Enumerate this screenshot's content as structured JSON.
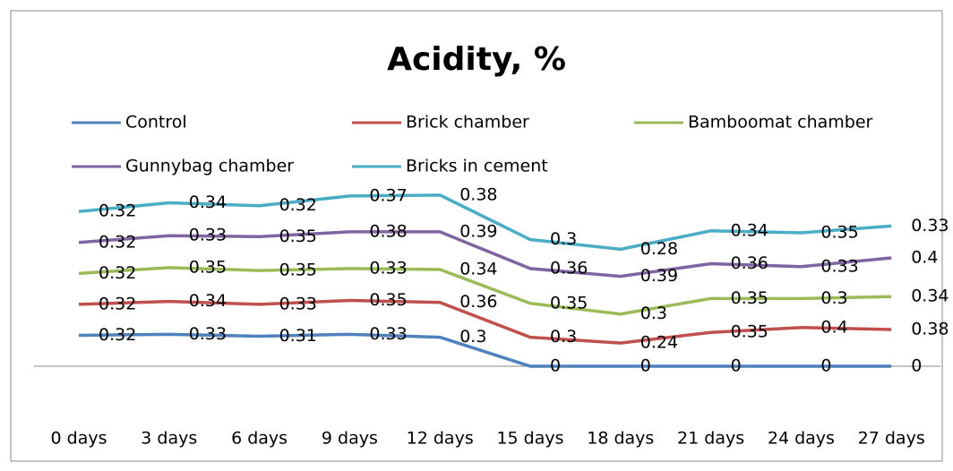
{
  "chart_data": {
    "type": "line",
    "stacked": true,
    "title": "Acidity, %",
    "categories": [
      "0 days",
      "3 days",
      "6 days",
      "9 days",
      "12 days",
      "15 days",
      "18 days",
      "21 days",
      "24 days",
      "27 days"
    ],
    "series": [
      {
        "name": "Control",
        "color": "#4f81bd",
        "values": [
          0.32,
          0.33,
          0.31,
          0.33,
          0.3,
          0,
          0,
          0,
          0,
          0
        ]
      },
      {
        "name": "Brick chamber",
        "color": "#c0504d",
        "values": [
          0.32,
          0.34,
          0.33,
          0.35,
          0.36,
          0.3,
          0.24,
          0.35,
          0.4,
          0.38
        ]
      },
      {
        "name": "Bamboomat chamber",
        "color": "#9bbb59",
        "values": [
          0.32,
          0.35,
          0.35,
          0.33,
          0.34,
          0.35,
          0.3,
          0.35,
          0.3,
          0.34
        ]
      },
      {
        "name": "Gunnybag chamber",
        "color": "#8064a2",
        "values": [
          0.32,
          0.33,
          0.35,
          0.38,
          0.39,
          0.36,
          0.39,
          0.36,
          0.33,
          0.4
        ]
      },
      {
        "name": "Bricks in cement",
        "color": "#4bacc6",
        "values": [
          0.32,
          0.34,
          0.32,
          0.37,
          0.38,
          0.3,
          0.28,
          0.34,
          0.35,
          0.33
        ]
      }
    ],
    "legend": "top",
    "grid": false
  }
}
